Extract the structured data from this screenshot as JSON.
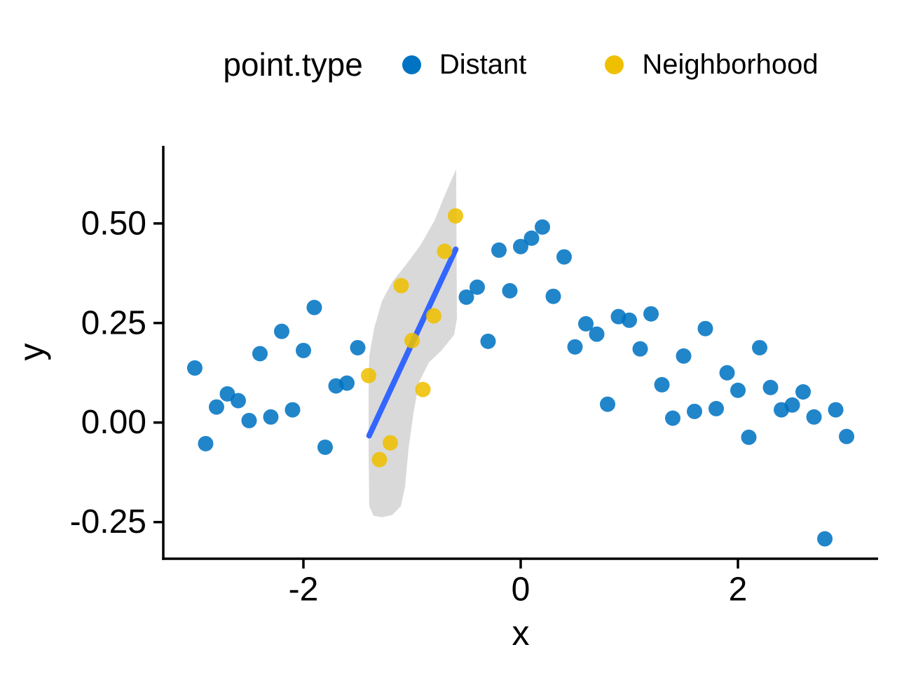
{
  "legend": {
    "title": "point.type",
    "entries": [
      {
        "label": "Distant",
        "color": "#0073C2"
      },
      {
        "label": "Neighborhood",
        "color": "#EFC000"
      }
    ]
  },
  "chart_data": {
    "type": "scatter",
    "title": "",
    "xlabel": "x",
    "ylabel": "y",
    "xlim": [
      -3.29,
      3.29
    ],
    "ylim": [
      -0.342,
      0.695
    ],
    "grid": false,
    "legend_position": "top",
    "x_ticks": {
      "values": [
        -2,
        0,
        2
      ],
      "labels": [
        "-2",
        "0",
        "2"
      ]
    },
    "y_ticks": {
      "values": [
        0.5,
        0.25,
        0,
        -0.25
      ],
      "labels": [
        "0.50",
        "0.25",
        "0.00",
        "-0.25"
      ]
    },
    "series": [
      {
        "name": "Distant",
        "color": "#0073C2",
        "points": [
          [
            -3.0,
            0.137
          ],
          [
            -2.9,
            -0.053
          ],
          [
            -2.8,
            0.039
          ],
          [
            -2.7,
            0.072
          ],
          [
            -2.6,
            0.055
          ],
          [
            -2.5,
            0.005
          ],
          [
            -2.4,
            0.173
          ],
          [
            -2.3,
            0.014
          ],
          [
            -2.2,
            0.229
          ],
          [
            -2.1,
            0.032
          ],
          [
            -2.0,
            0.181
          ],
          [
            -1.9,
            0.289
          ],
          [
            -1.8,
            -0.062
          ],
          [
            -1.7,
            0.092
          ],
          [
            -1.6,
            0.099
          ],
          [
            -1.5,
            0.188
          ],
          [
            -0.5,
            0.315
          ],
          [
            -0.4,
            0.34
          ],
          [
            -0.3,
            0.204
          ],
          [
            -0.2,
            0.433
          ],
          [
            -0.1,
            0.331
          ],
          [
            0.0,
            0.442
          ],
          [
            0.1,
            0.463
          ],
          [
            0.2,
            0.491
          ],
          [
            0.3,
            0.317
          ],
          [
            0.4,
            0.416
          ],
          [
            0.5,
            0.19
          ],
          [
            0.6,
            0.248
          ],
          [
            0.7,
            0.222
          ],
          [
            0.8,
            0.046
          ],
          [
            0.9,
            0.266
          ],
          [
            1.0,
            0.257
          ],
          [
            1.1,
            0.185
          ],
          [
            1.2,
            0.273
          ],
          [
            1.3,
            0.095
          ],
          [
            1.4,
            0.011
          ],
          [
            1.5,
            0.167
          ],
          [
            1.6,
            0.028
          ],
          [
            1.7,
            0.236
          ],
          [
            1.8,
            0.035
          ],
          [
            1.9,
            0.125
          ],
          [
            2.0,
            0.081
          ],
          [
            2.1,
            -0.037
          ],
          [
            2.2,
            0.188
          ],
          [
            2.3,
            0.088
          ],
          [
            2.4,
            0.032
          ],
          [
            2.5,
            0.044
          ],
          [
            2.6,
            0.077
          ],
          [
            2.7,
            0.014
          ],
          [
            2.8,
            -0.292
          ],
          [
            2.9,
            0.032
          ],
          [
            3.0,
            -0.035
          ]
        ]
      },
      {
        "name": "Neighborhood",
        "color": "#EFC000",
        "points": [
          [
            -1.4,
            0.118
          ],
          [
            -1.3,
            -0.093
          ],
          [
            -1.2,
            -0.051
          ],
          [
            -1.1,
            0.344
          ],
          [
            -1.0,
            0.206
          ],
          [
            -0.9,
            0.083
          ],
          [
            -0.8,
            0.268
          ],
          [
            -0.7,
            0.43
          ],
          [
            -0.6,
            0.519
          ]
        ]
      }
    ],
    "smooth": {
      "method": "lm",
      "line_color": "#3366FF",
      "line": [
        [
          -1.395,
          -0.033
        ],
        [
          -0.598,
          0.435
        ]
      ],
      "ribbon_color": "#D9D9D9",
      "ribbon": [
        [
          -0.594,
          0.636
        ],
        [
          -0.587,
          0.261
        ],
        [
          -0.613,
          0.22
        ],
        [
          -0.729,
          0.181
        ],
        [
          -0.845,
          0.151
        ],
        [
          -0.935,
          0.102
        ],
        [
          -0.987,
          0.023
        ],
        [
          -1.032,
          -0.065
        ],
        [
          -1.065,
          -0.162
        ],
        [
          -1.103,
          -0.21
        ],
        [
          -1.181,
          -0.232
        ],
        [
          -1.277,
          -0.238
        ],
        [
          -1.355,
          -0.234
        ],
        [
          -1.394,
          -0.21
        ],
        [
          -1.4,
          -0.065
        ],
        [
          -1.4,
          0.076
        ],
        [
          -1.394,
          0.167
        ],
        [
          -1.348,
          0.238
        ],
        [
          -1.277,
          0.305
        ],
        [
          -1.181,
          0.354
        ],
        [
          -1.065,
          0.393
        ],
        [
          -0.923,
          0.445
        ],
        [
          -0.794,
          0.507
        ],
        [
          -0.697,
          0.572
        ],
        [
          -0.632,
          0.613
        ]
      ]
    },
    "style": {
      "point_radius": 11,
      "point_opacity": 0.87,
      "axis_color": "#000000",
      "text_color": "#000000"
    }
  }
}
